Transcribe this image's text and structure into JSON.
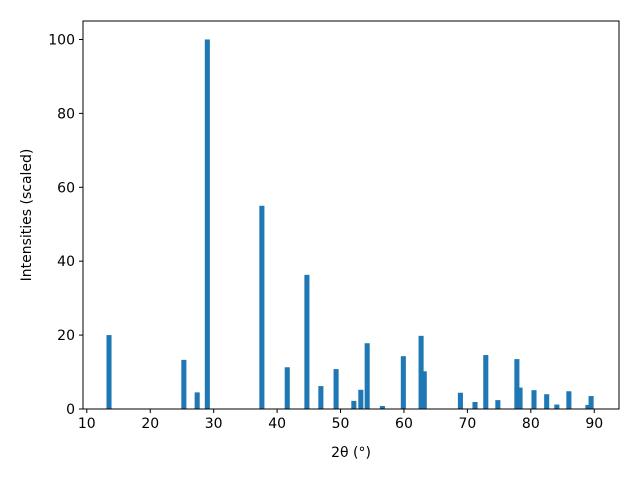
{
  "chart_data": {
    "type": "bar",
    "xlabel": "2θ (°)",
    "ylabel": "Intensities (scaled)",
    "x": [
      13.5,
      25.3,
      27.4,
      29.0,
      37.6,
      41.6,
      44.7,
      46.9,
      49.3,
      52.1,
      53.2,
      54.2,
      56.6,
      59.9,
      62.7,
      63.2,
      68.9,
      71.2,
      72.9,
      74.8,
      77.8,
      78.3,
      80.5,
      82.5,
      84.1,
      86.0,
      89.0,
      89.5
    ],
    "values": [
      20,
      13.3,
      4.5,
      100,
      55,
      11.3,
      36.3,
      6.2,
      10.8,
      2.2,
      5.2,
      17.8,
      0.8,
      14.3,
      19.8,
      10.2,
      4.4,
      1.9,
      14.6,
      2.4,
      13.5,
      5.8,
      5.1,
      4.0,
      1.2,
      4.8,
      1.1,
      3.5
    ],
    "color": "#1f77b4",
    "xlim": [
      9.4,
      93.9
    ],
    "ylim": [
      0,
      105
    ],
    "xticks": [
      10,
      20,
      30,
      40,
      50,
      60,
      70,
      80,
      90
    ],
    "yticks": [
      0,
      20,
      40,
      60,
      80,
      100
    ]
  }
}
